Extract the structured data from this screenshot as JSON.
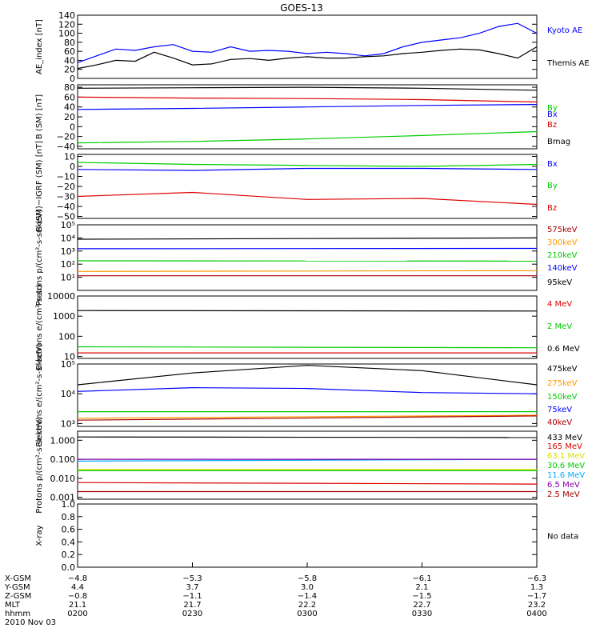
{
  "title": "GOES-13",
  "colors": {
    "black": "#000000",
    "blue": "#0000ff",
    "green": "#00cc00",
    "red": "#dd0000",
    "darkred": "#aa0000",
    "orange": "#ff9900",
    "yellow": "#dddd00",
    "cyan": "#00aaff",
    "purple": "#8800aa"
  },
  "chart_data": [
    {
      "type": "line",
      "ylabel": "AE_index [nT]",
      "ylim": [
        0,
        140
      ],
      "yticks": [
        0,
        20,
        40,
        60,
        80,
        100,
        120,
        140
      ],
      "yticklabels": [
        "0",
        "20",
        "40",
        "60",
        "80",
        "100",
        "120",
        "140"
      ],
      "series": [
        {
          "name": "Kyoto AE",
          "color": "#0000ff",
          "x": [
            0,
            10,
            20,
            30,
            40,
            50,
            60,
            70,
            80,
            90,
            100,
            110,
            120,
            130,
            140,
            150,
            160,
            170,
            180,
            190,
            200,
            210,
            220,
            230,
            240
          ],
          "y": [
            35,
            50,
            65,
            62,
            70,
            75,
            60,
            58,
            70,
            60,
            62,
            60,
            55,
            58,
            55,
            50,
            55,
            70,
            80,
            85,
            90,
            100,
            115,
            122,
            100
          ]
        },
        {
          "name": "Themis AE",
          "color": "#000000",
          "x": [
            0,
            10,
            20,
            30,
            40,
            50,
            60,
            70,
            80,
            90,
            100,
            110,
            120,
            130,
            140,
            150,
            160,
            170,
            180,
            190,
            200,
            210,
            220,
            230,
            240
          ],
          "y": [
            22,
            30,
            40,
            38,
            58,
            45,
            30,
            32,
            42,
            44,
            40,
            45,
            48,
            45,
            45,
            48,
            50,
            55,
            58,
            62,
            65,
            63,
            55,
            45,
            70
          ]
        }
      ]
    },
    {
      "type": "line",
      "ylabel": "B (SM) [nT]",
      "ylim": [
        -45,
        85
      ],
      "yticks": [
        -40,
        -20,
        0,
        20,
        40,
        60,
        80
      ],
      "yticklabels": [
        "−40",
        "−20",
        "0",
        "20",
        "40",
        "60",
        "80"
      ],
      "series": [
        {
          "name": "Bx",
          "color": "#0000ff",
          "x": [
            0,
            60,
            120,
            180,
            240
          ],
          "y": [
            35,
            37,
            40,
            43,
            45
          ]
        },
        {
          "name": "By",
          "color": "#00cc00",
          "x": [
            0,
            60,
            120,
            180,
            240
          ],
          "y": [
            -33,
            -30,
            -25,
            -18,
            -10
          ]
        },
        {
          "name": "Bz",
          "color": "#dd0000",
          "x": [
            0,
            60,
            120,
            180,
            240
          ],
          "y": [
            60,
            58,
            57,
            55,
            50
          ]
        },
        {
          "name": "Bmag",
          "color": "#000000",
          "x": [
            0,
            60,
            120,
            180,
            240
          ],
          "y": [
            78,
            79,
            80,
            78,
            74
          ]
        }
      ]
    },
    {
      "type": "line",
      "ylabel": "B (SM)−IGRF (SM) [nT]",
      "ylim": [
        -52,
        12
      ],
      "yticks": [
        -50,
        -40,
        -30,
        -20,
        -10,
        0,
        10
      ],
      "yticklabels": [
        "−50",
        "−40",
        "−30",
        "−20",
        "−10",
        "0",
        "10"
      ],
      "series": [
        {
          "name": "Bx",
          "color": "#0000ff",
          "x": [
            0,
            60,
            120,
            180,
            240
          ],
          "y": [
            -3,
            -4,
            -2,
            -2,
            -3
          ]
        },
        {
          "name": "By",
          "color": "#00cc00",
          "x": [
            0,
            60,
            120,
            180,
            240
          ],
          "y": [
            4,
            2,
            1,
            0,
            2
          ]
        },
        {
          "name": "Bz",
          "color": "#dd0000",
          "x": [
            0,
            60,
            120,
            180,
            240
          ],
          "y": [
            -30,
            -26,
            -33,
            -32,
            -38
          ]
        }
      ]
    },
    {
      "type": "line",
      "ylabel": "Protons p/(cm²-s-sr-keV)",
      "yscale": "log",
      "ylim": [
        1,
        100000
      ],
      "yticks": [
        10,
        100,
        1000,
        10000,
        100000
      ],
      "yticklabels": [
        "10¹",
        "10²",
        "10³",
        "10⁴",
        "10⁵"
      ],
      "series": [
        {
          "name": "575keV",
          "color": "#aa0000",
          "x": [
            0,
            240
          ],
          "y": [
            13,
            13
          ]
        },
        {
          "name": "300keV",
          "color": "#ff9900",
          "x": [
            0,
            240
          ],
          "y": [
            28,
            32
          ]
        },
        {
          "name": "210keV",
          "color": "#00cc00",
          "x": [
            0,
            240
          ],
          "y": [
            180,
            170
          ]
        },
        {
          "name": "140keV",
          "color": "#0000ff",
          "x": [
            0,
            240
          ],
          "y": [
            1500,
            1600
          ]
        },
        {
          "name": "95keV",
          "color": "#000000",
          "x": [
            0,
            240
          ],
          "y": [
            8000,
            10000
          ]
        }
      ]
    },
    {
      "type": "line",
      "ylabel": "Electrons e/(cm²-s-sr)",
      "yscale": "log",
      "ylim": [
        8,
        10000
      ],
      "yticks": [
        10,
        100,
        1000,
        10000
      ],
      "yticklabels": [
        "10",
        "100",
        "1000",
        "10000"
      ],
      "series": [
        {
          "name": "4 MeV",
          "color": "#dd0000",
          "x": [
            0,
            240
          ],
          "y": [
            15,
            15
          ]
        },
        {
          "name": "2 MeV",
          "color": "#00cc00",
          "x": [
            0,
            240
          ],
          "y": [
            30,
            27
          ]
        },
        {
          "name": "0.6 MeV",
          "color": "#000000",
          "x": [
            0,
            240
          ],
          "y": [
            1900,
            1800
          ]
        }
      ]
    },
    {
      "type": "line",
      "ylabel": "Electrons e/(cm²-s-sr-keV)",
      "yscale": "log",
      "ylim": [
        800,
        100000
      ],
      "yticks": [
        1000,
        10000,
        100000
      ],
      "yticklabels": [
        "10³",
        "10⁴",
        "10⁵"
      ],
      "series": [
        {
          "name": "475keV",
          "color": "#000000",
          "x": [
            0,
            60,
            120,
            180,
            240
          ],
          "y": [
            20000,
            50000,
            90000,
            60000,
            20000
          ]
        },
        {
          "name": "275keV",
          "color": "#ff9900",
          "x": [
            0,
            240
          ],
          "y": [
            1500,
            1900
          ]
        },
        {
          "name": "150keV",
          "color": "#00cc00",
          "x": [
            0,
            240
          ],
          "y": [
            2500,
            2500
          ]
        },
        {
          "name": "75keV",
          "color": "#0000ff",
          "x": [
            0,
            60,
            120,
            180,
            240
          ],
          "y": [
            12000,
            16000,
            15000,
            11000,
            10000
          ]
        },
        {
          "name": "40keV",
          "color": "#aa0000",
          "x": [
            0,
            240
          ],
          "y": [
            1300,
            1800
          ]
        }
      ]
    },
    {
      "type": "line",
      "ylabel": "Protons p/(cm²-s-sr-keV)",
      "yscale": "log",
      "ylim": [
        0.0008,
        3
      ],
      "yticks": [
        0.001,
        0.01,
        0.1,
        1
      ],
      "yticklabels": [
        "0.001",
        "0.010",
        "0.100",
        "1.000"
      ],
      "series": [
        {
          "name": "433 MeV",
          "color": "#000000",
          "x": [
            0,
            240
          ],
          "y": [
            1.5,
            1.4
          ]
        },
        {
          "name": "165 MeV",
          "color": "#dd0000",
          "x": [
            0,
            240
          ],
          "y": [
            0.006,
            0.005
          ]
        },
        {
          "name": "63.1 MeV",
          "color": "#dddd00",
          "x": [
            0,
            240
          ],
          "y": [
            0.03,
            0.03
          ]
        },
        {
          "name": "30.6 MeV",
          "color": "#00cc00",
          "x": [
            0,
            240
          ],
          "y": [
            0.025,
            0.025
          ]
        },
        {
          "name": "11.6 MeV",
          "color": "#00aaff",
          "x": [
            0,
            240
          ],
          "y": [
            0.08,
            0.1
          ]
        },
        {
          "name": "6.5 MeV",
          "color": "#8800aa",
          "x": [
            0,
            240
          ],
          "y": [
            0.1,
            0.1
          ]
        },
        {
          "name": "2.5 MeV",
          "color": "#aa0000",
          "x": [
            0,
            240
          ],
          "y": [
            0.002,
            0.002
          ]
        }
      ]
    },
    {
      "type": "line",
      "ylabel": "X-ray",
      "ylim": [
        0,
        1
      ],
      "yticks": [
        0,
        0.2,
        0.4,
        0.6,
        0.8,
        1.0
      ],
      "yticklabels": [
        "0.0",
        "0.2",
        "0.4",
        "0.6",
        "0.8",
        "1.0"
      ],
      "note": "No data",
      "series": []
    }
  ],
  "x_axis": {
    "row_labels": [
      "X-GSM",
      "Y-GSM",
      "Z-GSM",
      "MLT",
      "hhmm"
    ],
    "date": "2010 Nov 03",
    "columns": [
      {
        "time_min": 0,
        "values": [
          "−4.8",
          "4.4",
          "−0.8",
          "21.1",
          "0200"
        ]
      },
      {
        "time_min": 60,
        "values": [
          "−5.3",
          "3.7",
          "−1.1",
          "21.7",
          "0230"
        ]
      },
      {
        "time_min": 120,
        "values": [
          "−5.8",
          "3.0",
          "−1.4",
          "22.2",
          "0300"
        ]
      },
      {
        "time_min": 180,
        "values": [
          "−6.1",
          "2.1",
          "−1.5",
          "22.7",
          "0330"
        ]
      },
      {
        "time_min": 240,
        "values": [
          "−6.3",
          "1.3",
          "−1.7",
          "23.2",
          "0400"
        ]
      }
    ]
  }
}
